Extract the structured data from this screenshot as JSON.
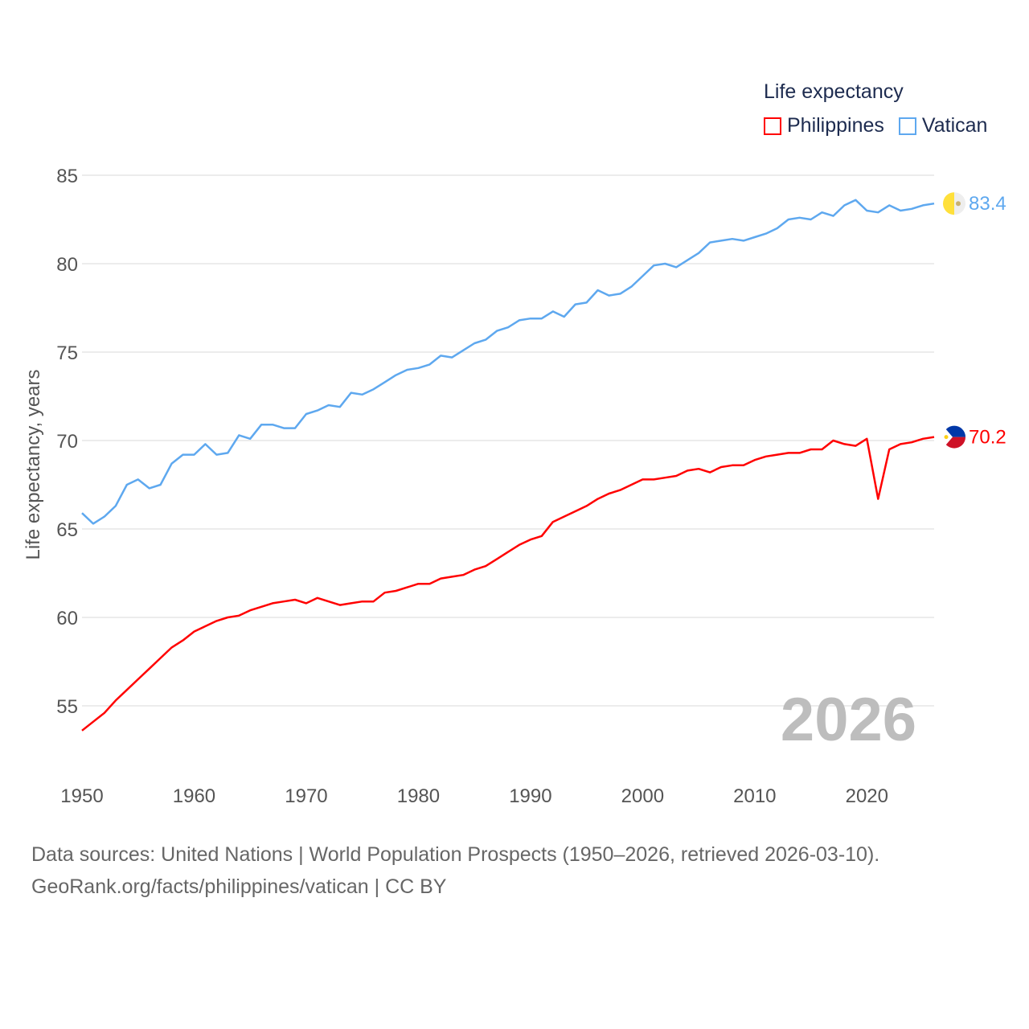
{
  "chart_data": {
    "type": "line",
    "title": "Life expectancy",
    "ylabel": "Life expectancy, years",
    "xlabel": "",
    "xlim": [
      1950,
      2026
    ],
    "ylim": [
      53,
      85
    ],
    "grid": true,
    "legend_placement": "top-right",
    "yticks": [
      "55",
      "60",
      "65",
      "70",
      "75",
      "80",
      "85"
    ],
    "xticks": [
      "1950",
      "1960",
      "1970",
      "1980",
      "1990",
      "2000",
      "2010",
      "2020"
    ],
    "year_label": "2026",
    "x": [
      1950,
      1951,
      1952,
      1953,
      1954,
      1955,
      1956,
      1957,
      1958,
      1959,
      1960,
      1961,
      1962,
      1963,
      1964,
      1965,
      1966,
      1967,
      1968,
      1969,
      1970,
      1971,
      1972,
      1973,
      1974,
      1975,
      1976,
      1977,
      1978,
      1979,
      1980,
      1981,
      1982,
      1983,
      1984,
      1985,
      1986,
      1987,
      1988,
      1989,
      1990,
      1991,
      1992,
      1993,
      1994,
      1995,
      1996,
      1997,
      1998,
      1999,
      2000,
      2001,
      2002,
      2003,
      2004,
      2005,
      2006,
      2007,
      2008,
      2009,
      2010,
      2011,
      2012,
      2013,
      2014,
      2015,
      2016,
      2017,
      2018,
      2019,
      2020,
      2021,
      2022,
      2023,
      2024,
      2025,
      2026
    ],
    "series": [
      {
        "name": "Philippines",
        "color": "#ff0000",
        "end_label": "70.2",
        "values": [
          53.6,
          54.1,
          54.6,
          55.3,
          55.9,
          56.5,
          57.1,
          57.7,
          58.3,
          58.7,
          59.2,
          59.5,
          59.8,
          60.0,
          60.1,
          60.4,
          60.6,
          60.8,
          60.9,
          61.0,
          60.8,
          61.1,
          60.9,
          60.7,
          60.8,
          60.9,
          60.9,
          61.4,
          61.5,
          61.7,
          61.9,
          61.9,
          62.2,
          62.3,
          62.4,
          62.7,
          62.9,
          63.3,
          63.7,
          64.1,
          64.4,
          64.6,
          65.4,
          65.7,
          66.0,
          66.3,
          66.7,
          67.0,
          67.2,
          67.5,
          67.8,
          67.8,
          67.9,
          68.0,
          68.3,
          68.4,
          68.2,
          68.5,
          68.6,
          68.6,
          68.9,
          69.1,
          69.2,
          69.3,
          69.3,
          69.5,
          69.5,
          70.0,
          69.8,
          69.7,
          70.1,
          66.7,
          69.5,
          69.8,
          69.9,
          70.1,
          70.2
        ]
      },
      {
        "name": "Vatican",
        "color": "#5ea8ef",
        "end_label": "83.4",
        "values": [
          65.9,
          65.3,
          65.7,
          66.3,
          67.5,
          67.8,
          67.3,
          67.5,
          68.7,
          69.2,
          69.2,
          69.8,
          69.2,
          69.3,
          70.3,
          70.1,
          70.9,
          70.9,
          70.7,
          70.7,
          71.5,
          71.7,
          72.0,
          71.9,
          72.7,
          72.6,
          72.9,
          73.3,
          73.7,
          74.0,
          74.1,
          74.3,
          74.8,
          74.7,
          75.1,
          75.5,
          75.7,
          76.2,
          76.4,
          76.8,
          76.9,
          76.9,
          77.3,
          77.0,
          77.7,
          77.8,
          78.5,
          78.2,
          78.3,
          78.7,
          79.3,
          79.9,
          80.0,
          79.8,
          80.2,
          80.6,
          81.2,
          81.3,
          81.4,
          81.3,
          81.5,
          81.7,
          82.0,
          82.5,
          82.6,
          82.5,
          82.9,
          82.7,
          83.3,
          83.6,
          83.0,
          82.9,
          83.3,
          83.0,
          83.1,
          83.3,
          83.4
        ]
      }
    ]
  },
  "footer": {
    "line1": "Data sources: United Nations | World Population Prospects (1950–2026, retrieved 2026-03-10).",
    "line2": "GeoRank.org/facts/philippines/vatican | CC BY"
  }
}
